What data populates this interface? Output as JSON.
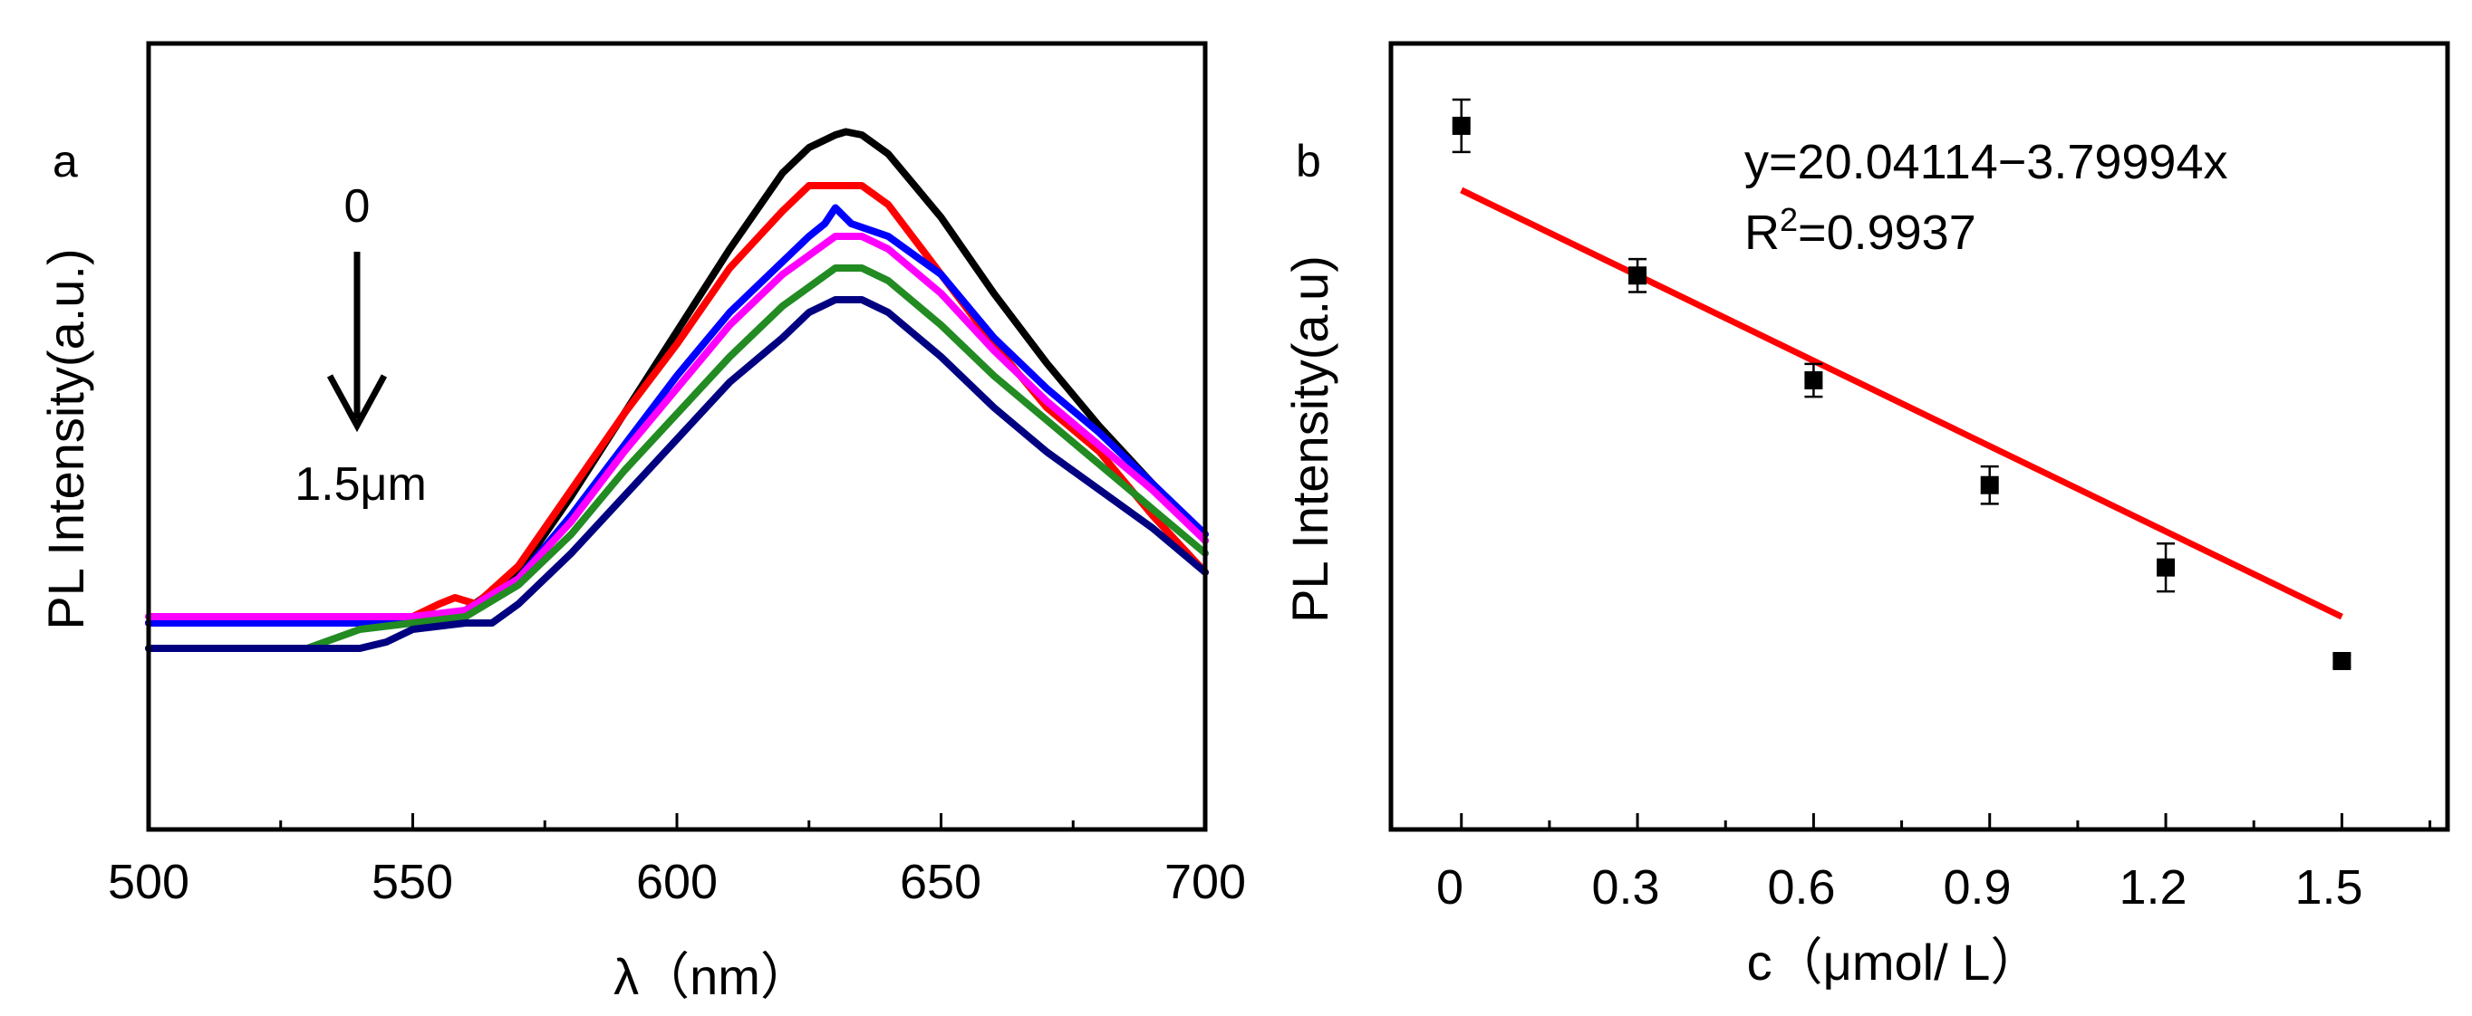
{
  "chart_data": [
    {
      "type": "line",
      "panel_label": "a",
      "xlabel": "λ（nm）",
      "ylabel": "PL Intensity(a.u.)",
      "xlim": [
        500,
        700
      ],
      "ylim": [
        0,
        1
      ],
      "x_ticks": [
        "500",
        "550",
        "600",
        "650",
        "700"
      ],
      "annotation_top": "0",
      "annotation_bottom": "1.5μm",
      "series": [
        {
          "color": "#000000",
          "x": [
            500,
            520,
            540,
            550,
            560,
            570,
            580,
            590,
            600,
            610,
            620,
            625,
            630,
            632,
            635,
            640,
            650,
            660,
            670,
            680,
            690,
            700
          ],
          "y": [
            0.16,
            0.16,
            0.16,
            0.16,
            0.18,
            0.24,
            0.36,
            0.49,
            0.62,
            0.75,
            0.87,
            0.91,
            0.93,
            0.935,
            0.93,
            0.9,
            0.8,
            0.68,
            0.57,
            0.47,
            0.38,
            0.29
          ]
        },
        {
          "color": "#ff0000",
          "x": [
            500,
            520,
            540,
            550,
            555,
            558,
            562,
            570,
            580,
            590,
            600,
            610,
            620,
            625,
            628,
            635,
            640,
            650,
            660,
            670,
            680,
            690,
            700
          ],
          "y": [
            0.16,
            0.16,
            0.16,
            0.17,
            0.19,
            0.2,
            0.19,
            0.25,
            0.37,
            0.49,
            0.6,
            0.72,
            0.81,
            0.85,
            0.85,
            0.85,
            0.82,
            0.71,
            0.6,
            0.5,
            0.43,
            0.33,
            0.24
          ]
        },
        {
          "color": "#0000ff",
          "x": [
            500,
            520,
            540,
            550,
            560,
            570,
            580,
            590,
            600,
            610,
            620,
            625,
            628,
            630,
            633,
            640,
            650,
            660,
            670,
            680,
            690,
            700
          ],
          "y": [
            0.16,
            0.16,
            0.16,
            0.16,
            0.17,
            0.23,
            0.33,
            0.44,
            0.55,
            0.65,
            0.73,
            0.77,
            0.79,
            0.815,
            0.79,
            0.77,
            0.71,
            0.61,
            0.53,
            0.46,
            0.38,
            0.3
          ]
        },
        {
          "color": "#ff00ff",
          "x": [
            500,
            520,
            540,
            550,
            560,
            570,
            580,
            590,
            600,
            610,
            620,
            625,
            630,
            635,
            640,
            650,
            660,
            670,
            680,
            690,
            700
          ],
          "y": [
            0.17,
            0.17,
            0.17,
            0.17,
            0.18,
            0.23,
            0.32,
            0.43,
            0.53,
            0.63,
            0.71,
            0.74,
            0.77,
            0.77,
            0.75,
            0.68,
            0.59,
            0.51,
            0.44,
            0.37,
            0.29
          ]
        },
        {
          "color": "#228b22",
          "x": [
            500,
            520,
            530,
            540,
            550,
            560,
            570,
            580,
            590,
            600,
            610,
            620,
            625,
            630,
            635,
            640,
            650,
            660,
            670,
            680,
            690,
            700
          ],
          "y": [
            0.12,
            0.12,
            0.12,
            0.15,
            0.16,
            0.17,
            0.22,
            0.3,
            0.4,
            0.49,
            0.58,
            0.66,
            0.69,
            0.72,
            0.72,
            0.7,
            0.63,
            0.55,
            0.48,
            0.41,
            0.34,
            0.27
          ]
        },
        {
          "color": "#000080",
          "x": [
            500,
            520,
            540,
            545,
            550,
            560,
            565,
            570,
            580,
            590,
            600,
            610,
            620,
            625,
            630,
            635,
            640,
            650,
            660,
            670,
            680,
            690,
            700
          ],
          "y": [
            0.12,
            0.12,
            0.12,
            0.13,
            0.15,
            0.16,
            0.16,
            0.19,
            0.27,
            0.36,
            0.45,
            0.54,
            0.61,
            0.65,
            0.67,
            0.67,
            0.65,
            0.58,
            0.5,
            0.43,
            0.37,
            0.31,
            0.24
          ]
        }
      ]
    },
    {
      "type": "scatter",
      "panel_label": "b",
      "xlabel": "c（μmol/ L）",
      "ylabel": "PL Intensity(a.u)",
      "xlim": [
        -0.12,
        1.68
      ],
      "ylim": [
        11.5,
        22.0
      ],
      "x_ticks": [
        "0",
        "0.3",
        "0.6",
        "0.9",
        "1.2",
        "1.5"
      ],
      "equation": "y=20.04114−3.79994x",
      "r2_prefix": "R",
      "r2_sup": "2",
      "r2_value": "=0.9937",
      "fit": {
        "intercept": 20.04114,
        "slope": -3.79994,
        "x_range": [
          0,
          1.5
        ],
        "color": "#ff0000"
      },
      "points": [
        {
          "x": 0.0,
          "y": 20.9,
          "err": 0.35
        },
        {
          "x": 0.3,
          "y": 18.9,
          "err": 0.22
        },
        {
          "x": 0.6,
          "y": 17.5,
          "err": 0.22
        },
        {
          "x": 0.9,
          "y": 16.1,
          "err": 0.25
        },
        {
          "x": 1.2,
          "y": 15.0,
          "err": 0.32
        },
        {
          "x": 1.5,
          "y": 13.75,
          "err": 0.08
        }
      ]
    }
  ]
}
